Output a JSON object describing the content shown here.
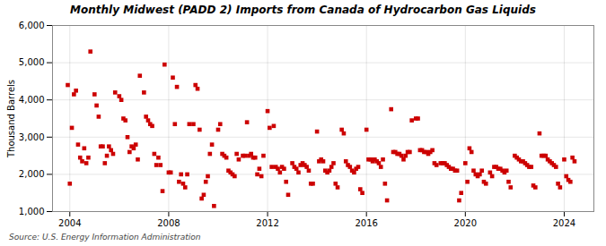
{
  "chart_data": {
    "type": "scatter",
    "title": "Monthly Midwest (PADD 2) Imports from Canada of Hydrocarbon Gas Liquids",
    "ylabel": "Thousand Barrels",
    "source": "Source: U.S. Energy Information Administration",
    "color": "#cc0000",
    "marker": "square",
    "grid": true,
    "xlim": [
      2003.3,
      2025.2
    ],
    "xticks": [
      2004,
      2008,
      2012,
      2016,
      2020,
      2024
    ],
    "ylim": [
      1000,
      6000
    ],
    "yticks": [
      {
        "value": 1000,
        "label": "1,000"
      },
      {
        "value": 2000,
        "label": "2,000"
      },
      {
        "value": 3000,
        "label": "3,000"
      },
      {
        "value": 4000,
        "label": "4,000"
      },
      {
        "value": 5000,
        "label": "5,000"
      },
      {
        "value": 6000,
        "label": "6,000"
      }
    ],
    "x": [
      2003.917,
      2004.0,
      2004.083,
      2004.167,
      2004.25,
      2004.333,
      2004.417,
      2004.5,
      2004.583,
      2004.667,
      2004.75,
      2004.833,
      2005.0,
      2005.083,
      2005.167,
      2005.25,
      2005.333,
      2005.417,
      2005.5,
      2005.583,
      2005.667,
      2005.75,
      2005.833,
      2006.0,
      2006.083,
      2006.167,
      2006.25,
      2006.333,
      2006.417,
      2006.5,
      2006.583,
      2006.667,
      2006.75,
      2006.833,
      2007.0,
      2007.083,
      2007.167,
      2007.25,
      2007.333,
      2007.417,
      2007.5,
      2007.583,
      2007.667,
      2007.75,
      2007.833,
      2008.0,
      2008.083,
      2008.167,
      2008.25,
      2008.333,
      2008.417,
      2008.5,
      2008.583,
      2008.667,
      2008.75,
      2008.833,
      2009.0,
      2009.083,
      2009.167,
      2009.25,
      2009.333,
      2009.417,
      2009.5,
      2009.583,
      2009.667,
      2009.75,
      2009.833,
      2010.0,
      2010.083,
      2010.167,
      2010.25,
      2010.333,
      2010.417,
      2010.5,
      2010.583,
      2010.667,
      2010.75,
      2010.833,
      2011.0,
      2011.083,
      2011.167,
      2011.25,
      2011.333,
      2011.417,
      2011.5,
      2011.583,
      2011.667,
      2011.75,
      2011.833,
      2012.0,
      2012.083,
      2012.167,
      2012.25,
      2012.333,
      2012.417,
      2012.5,
      2012.583,
      2012.667,
      2012.75,
      2012.833,
      2013.0,
      2013.083,
      2013.167,
      2013.25,
      2013.333,
      2013.417,
      2013.5,
      2013.583,
      2013.667,
      2013.75,
      2013.833,
      2014.0,
      2014.083,
      2014.167,
      2014.25,
      2014.333,
      2014.417,
      2014.5,
      2014.583,
      2014.667,
      2014.75,
      2014.833,
      2015.0,
      2015.083,
      2015.167,
      2015.25,
      2015.333,
      2015.417,
      2015.5,
      2015.583,
      2015.667,
      2015.75,
      2015.833,
      2016.0,
      2016.083,
      2016.167,
      2016.25,
      2016.333,
      2016.417,
      2016.5,
      2016.583,
      2016.667,
      2016.75,
      2016.833,
      2017.0,
      2017.083,
      2017.167,
      2017.25,
      2017.333,
      2017.417,
      2017.5,
      2017.583,
      2017.667,
      2017.75,
      2017.833,
      2018.0,
      2018.083,
      2018.167,
      2018.25,
      2018.333,
      2018.417,
      2018.5,
      2018.583,
      2018.667,
      2018.75,
      2018.833,
      2019.0,
      2019.083,
      2019.167,
      2019.25,
      2019.333,
      2019.417,
      2019.5,
      2019.583,
      2019.667,
      2019.75,
      2019.833,
      2020.0,
      2020.083,
      2020.167,
      2020.25,
      2020.333,
      2020.417,
      2020.5,
      2020.583,
      2020.667,
      2020.75,
      2020.833,
      2021.0,
      2021.083,
      2021.167,
      2021.25,
      2021.333,
      2021.417,
      2021.5,
      2021.583,
      2021.667,
      2021.75,
      2021.833,
      2022.0,
      2022.083,
      2022.167,
      2022.25,
      2022.333,
      2022.417,
      2022.5,
      2022.583,
      2022.667,
      2022.75,
      2022.833,
      2023.0,
      2023.083,
      2023.167,
      2023.25,
      2023.333,
      2023.417,
      2023.5,
      2023.583,
      2023.667,
      2023.75,
      2023.833,
      2024.0,
      2024.083,
      2024.167,
      2024.25,
      2024.333,
      2024.417
    ],
    "values": [
      4400,
      1750,
      3250,
      4150,
      4250,
      2800,
      2450,
      2350,
      2700,
      2300,
      2450,
      5300,
      4150,
      3850,
      3550,
      2750,
      2750,
      2300,
      2500,
      2750,
      2650,
      2550,
      4200,
      4100,
      4000,
      3500,
      3450,
      3000,
      2600,
      2750,
      2700,
      2800,
      2400,
      4650,
      4200,
      3550,
      3450,
      3350,
      3300,
      2550,
      2250,
      2450,
      2250,
      1550,
      4950,
      2050,
      2050,
      4600,
      3350,
      4350,
      1800,
      2000,
      1750,
      1650,
      2000,
      3350,
      3350,
      4400,
      4300,
      3200,
      1350,
      1450,
      1800,
      1950,
      2550,
      2800,
      1150,
      3200,
      3350,
      2550,
      2500,
      2450,
      2100,
      2050,
      2000,
      1950,
      2550,
      2400,
      2500,
      2500,
      3400,
      2500,
      2550,
      2450,
      2450,
      2000,
      2150,
      1950,
      2500,
      3700,
      3250,
      2200,
      3300,
      2200,
      2150,
      2050,
      2200,
      2150,
      1800,
      1450,
      2300,
      2200,
      2150,
      2050,
      2250,
      2300,
      2250,
      2200,
      2100,
      1750,
      1750,
      3150,
      2350,
      2400,
      2350,
      2100,
      2050,
      2100,
      2200,
      2300,
      1750,
      1650,
      3200,
      3100,
      2350,
      2250,
      2200,
      2100,
      2050,
      2150,
      2200,
      1600,
      1500,
      3200,
      2400,
      2400,
      2350,
      2400,
      2350,
      2300,
      2200,
      2400,
      1750,
      1300,
      3750,
      2600,
      2600,
      2550,
      2550,
      2500,
      2400,
      2500,
      2600,
      2600,
      3450,
      3500,
      3500,
      2650,
      2650,
      2600,
      2600,
      2550,
      2600,
      2650,
      2300,
      2250,
      2300,
      2300,
      2300,
      2250,
      2200,
      2150,
      2150,
      2100,
      2100,
      1300,
      1500,
      2300,
      1800,
      2700,
      2600,
      2100,
      2000,
      1950,
      2000,
      2100,
      1800,
      1750,
      2050,
      1950,
      2200,
      2200,
      2150,
      2150,
      2100,
      2050,
      2100,
      1800,
      1650,
      2500,
      2450,
      2400,
      2350,
      2350,
      2300,
      2250,
      2200,
      2200,
      1700,
      1650,
      3100,
      2500,
      2500,
      2500,
      2400,
      2350,
      2300,
      2250,
      2200,
      1750,
      1650,
      2400,
      1950,
      1850,
      1800,
      2450,
      2350
    ]
  }
}
